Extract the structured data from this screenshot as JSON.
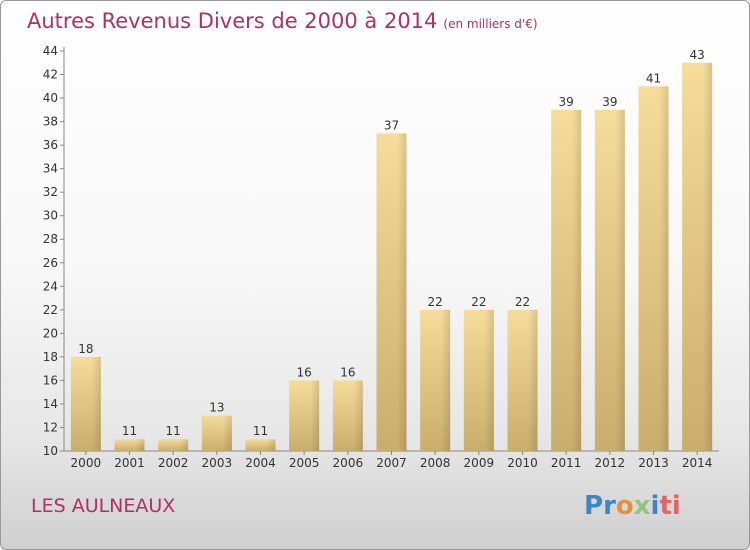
{
  "title": "Autres Revenus Divers de 2000 à 2014",
  "subtitle": "(en milliers d'€)",
  "commune": "LES AULNEAUX",
  "logo": {
    "text": "Proxiti",
    "letters": [
      {
        "ch": "P",
        "color": "#3d85c6"
      },
      {
        "ch": "r",
        "color": "#3d85c6"
      },
      {
        "ch": "o",
        "color": "#e69138"
      },
      {
        "ch": "x",
        "color": "#93c47d"
      },
      {
        "ch": "i",
        "color": "#3d85c6"
      },
      {
        "ch": "t",
        "color": "#e06666"
      },
      {
        "ch": "i",
        "color": "#e06666"
      }
    ]
  },
  "colors": {
    "accent": "#b03060",
    "bar_light": "#f5dc9a",
    "bar_dark": "#c9ad6c"
  },
  "chart_data": {
    "type": "bar",
    "categories": [
      "2000",
      "2001",
      "2002",
      "2003",
      "2004",
      "2005",
      "2006",
      "2007",
      "2008",
      "2009",
      "2010",
      "2011",
      "2012",
      "2013",
      "2014"
    ],
    "values": [
      18,
      11,
      11,
      13,
      11,
      16,
      16,
      37,
      22,
      22,
      22,
      39,
      39,
      41,
      43
    ],
    "ylim": [
      10,
      44
    ],
    "yticks": [
      10,
      12,
      14,
      16,
      18,
      20,
      22,
      24,
      26,
      28,
      30,
      32,
      34,
      36,
      38,
      40,
      42,
      44
    ],
    "grid": false,
    "legend": "none"
  }
}
